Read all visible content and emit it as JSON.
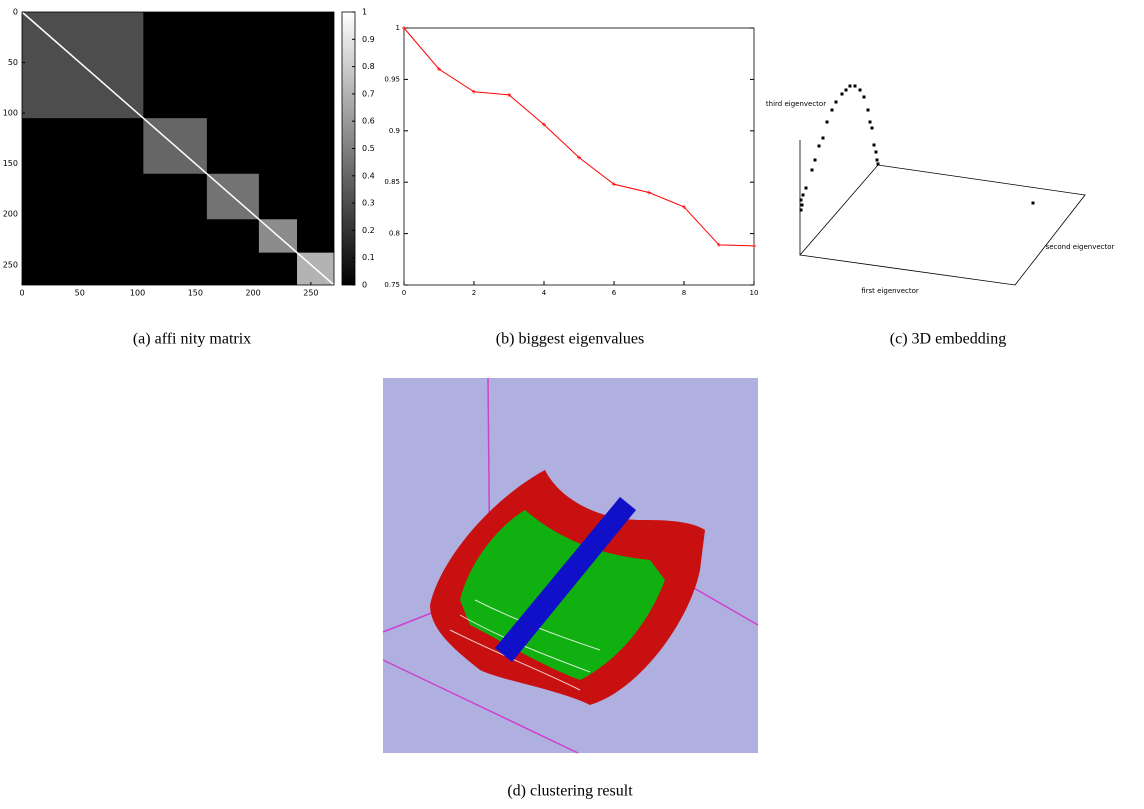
{
  "chart_data": [
    {
      "type": "heatmap",
      "caption": "(a)  affi nity matrix",
      "xlim": [
        0,
        270
      ],
      "ylim": [
        0,
        270
      ],
      "xticks": [
        0,
        50,
        100,
        150,
        200,
        250
      ],
      "yticks": [
        0,
        50,
        100,
        150,
        200,
        250
      ],
      "clim": [
        0,
        1
      ],
      "cticks": [
        0,
        0.1,
        0.2,
        0.3,
        0.4,
        0.5,
        0.6,
        0.7,
        0.8,
        0.9,
        1
      ],
      "colormap": "gray",
      "blocks": [
        {
          "start": 0,
          "end": 105,
          "value": 0.3
        },
        {
          "start": 105,
          "end": 160,
          "value": 0.4
        },
        {
          "start": 160,
          "end": 205,
          "value": 0.45
        },
        {
          "start": 205,
          "end": 238,
          "value": 0.55
        },
        {
          "start": 238,
          "end": 270,
          "value": 0.7
        }
      ],
      "diagonal": 1
    },
    {
      "type": "line",
      "caption": "(b)  biggest eigenvalues",
      "x": [
        0,
        1,
        2,
        3,
        4,
        5,
        6,
        7,
        8,
        9,
        10
      ],
      "values": [
        1,
        0.96,
        0.938,
        0.935,
        0.906,
        0.874,
        0.848,
        0.84,
        0.826,
        0.789,
        0.788
      ],
      "color": "#ff0000",
      "xlim": [
        0,
        10
      ],
      "ylim": [
        0.75,
        1
      ],
      "xticks": [
        0,
        2,
        4,
        6,
        8,
        10
      ],
      "yticks": [
        0.75,
        0.8,
        0.85,
        0.9,
        0.95,
        1
      ]
    },
    {
      "type": "scatter3d",
      "caption": "(c)  3D embedding",
      "zlabel": "third eigenvector",
      "ylabel": "second eigenvector",
      "xlabel": "first eigenvector"
    }
  ],
  "figure_d": {
    "caption": "(d)  clustering result"
  }
}
